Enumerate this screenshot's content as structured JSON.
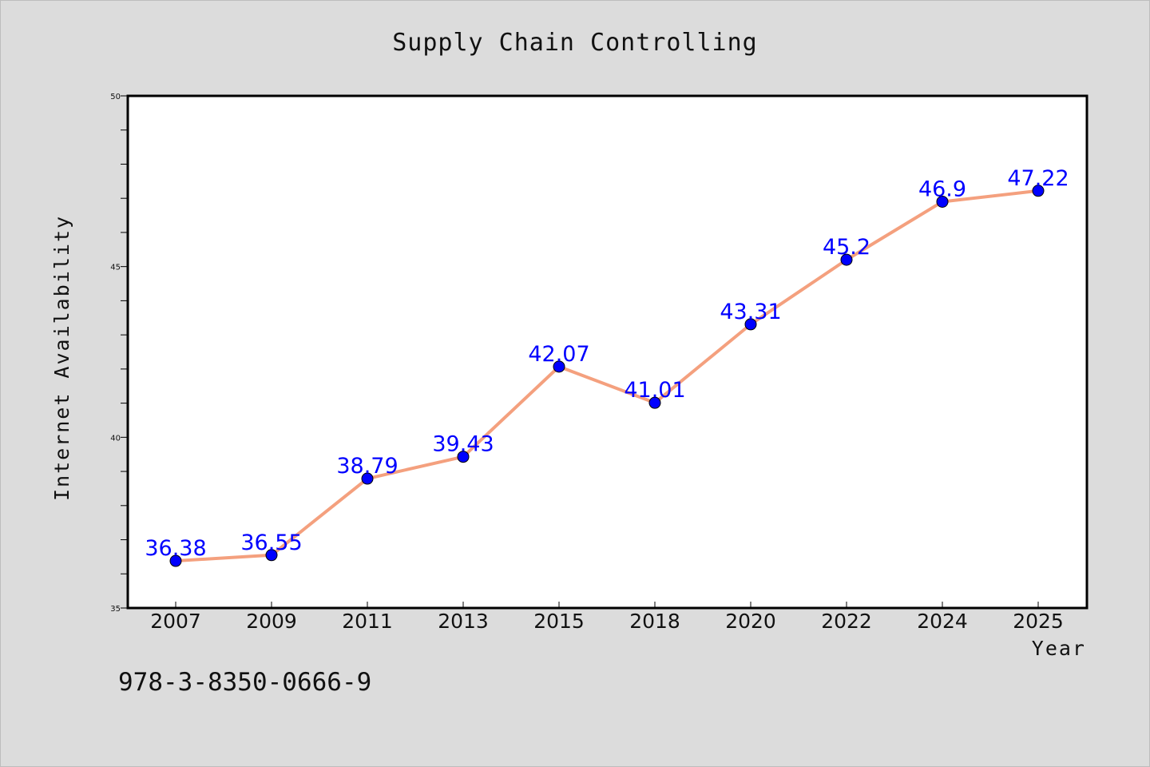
{
  "chart_data": {
    "type": "line",
    "title": "Supply Chain Controlling",
    "xlabel": "Year",
    "ylabel": "Internet Availability",
    "categories": [
      "2007",
      "2009",
      "2011",
      "2013",
      "2015",
      "2018",
      "2020",
      "2022",
      "2024",
      "2025"
    ],
    "series": [
      {
        "values": [
          36.38,
          36.55,
          38.79,
          39.43,
          42.07,
          41.01,
          43.31,
          45.2,
          46.9,
          47.22
        ],
        "labels": [
          "36.38",
          "36.55",
          "38.79",
          "39.43",
          "42.07",
          "41.01",
          "43.31",
          "45.2",
          "46.9",
          "47.22"
        ],
        "line_color": "#f4a07e",
        "marker_color": "#0000ff",
        "label_color": "#0000ff"
      }
    ],
    "ylim": [
      35,
      50
    ],
    "yticks": [
      "35",
      "40",
      "45",
      "50"
    ],
    "y_minor_step": 1,
    "grid": false,
    "legend": false
  },
  "footer": {
    "isbn": "978-3-8350-0666-9"
  },
  "colors": {
    "background": "#dcdcdc",
    "plot_background": "#ffffff"
  }
}
